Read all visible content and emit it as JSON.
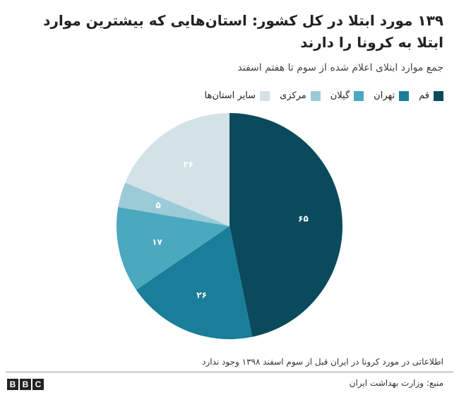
{
  "chart_data": {
    "type": "pie",
    "title": "۱۳۹ مورد ابتلا در کل کشور: استان‌هایی که بیشترین موارد ابتلا به کرونا را دارند",
    "subtitle": "جمع موارد ابتلای اعلام شده از سوم تا هفتم اسفند",
    "legend_position": "top-right",
    "slices": [
      {
        "name": "قم",
        "value": 65,
        "label": "۶۵",
        "color": "#0b4a5c"
      },
      {
        "name": "تهران",
        "value": 26,
        "label": "۲۶",
        "color": "#1a7e9a"
      },
      {
        "name": "گیلان",
        "value": 17,
        "label": "۱۷",
        "color": "#4aa8bf"
      },
      {
        "name": "مرکزی",
        "value": 5,
        "label": "۵",
        "color": "#9ccbd8"
      },
      {
        "name": "سایر استان‌ها",
        "value": 26,
        "label": "۲۶",
        "color": "#d2e2e7"
      }
    ]
  },
  "footnote": "اطلاعاتی در مورد کرونا در ایران قبل از سوم اسفند ۱۳۹۸ وجود ندارد",
  "source": "منبع: وزارت بهداشت ایران",
  "logo": [
    "B",
    "B",
    "C"
  ]
}
